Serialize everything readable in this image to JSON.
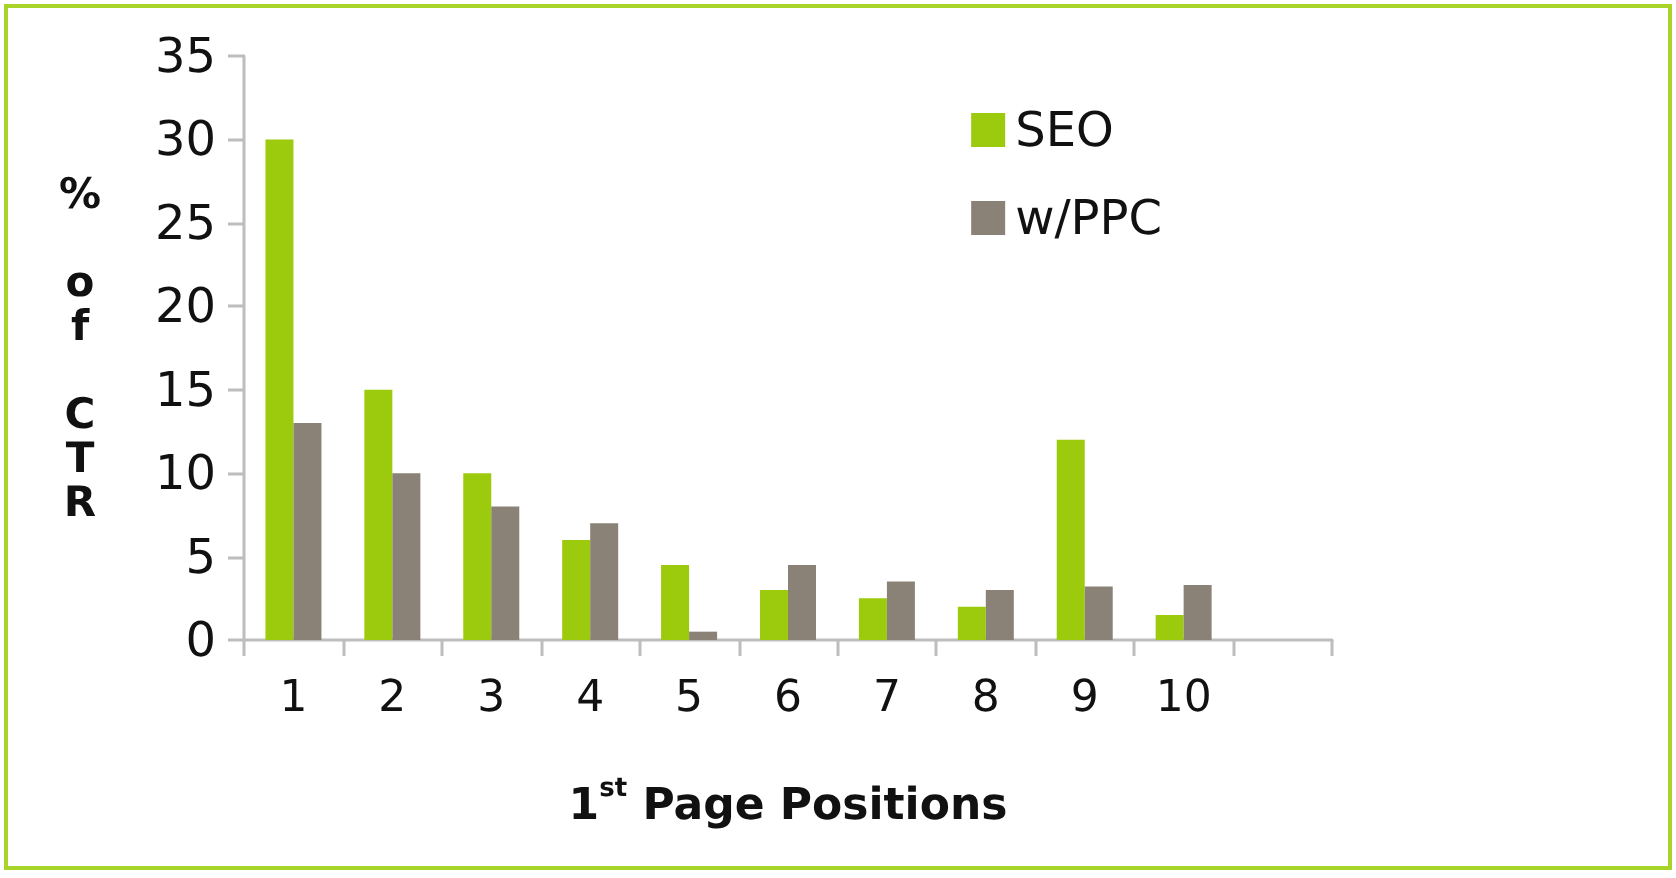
{
  "chart_data": {
    "type": "bar",
    "xlabel": "1$^{st}$ Page Positions",
    "ylabel": "% of CTR",
    "categories": [
      "1",
      "2",
      "3",
      "4",
      "5",
      "6",
      "7",
      "8",
      "9",
      "10",
      null
    ],
    "series": [
      {
        "name": "SEO",
        "color": "#9bcb0c",
        "values": [
          30,
          15,
          10,
          6,
          4.5,
          3,
          2.5,
          2,
          12,
          1.5,
          null
        ]
      },
      {
        "name": "w/PPC",
        "color": "#8a8276",
        "values": [
          13,
          10,
          8,
          7,
          0.5,
          4.5,
          3.5,
          3,
          3.2,
          3.3,
          null
        ]
      }
    ],
    "ylim": [
      0,
      35
    ],
    "yticks": [
      0,
      5,
      10,
      15,
      20,
      25,
      30,
      35
    ],
    "grid": false,
    "legend": "top right"
  }
}
